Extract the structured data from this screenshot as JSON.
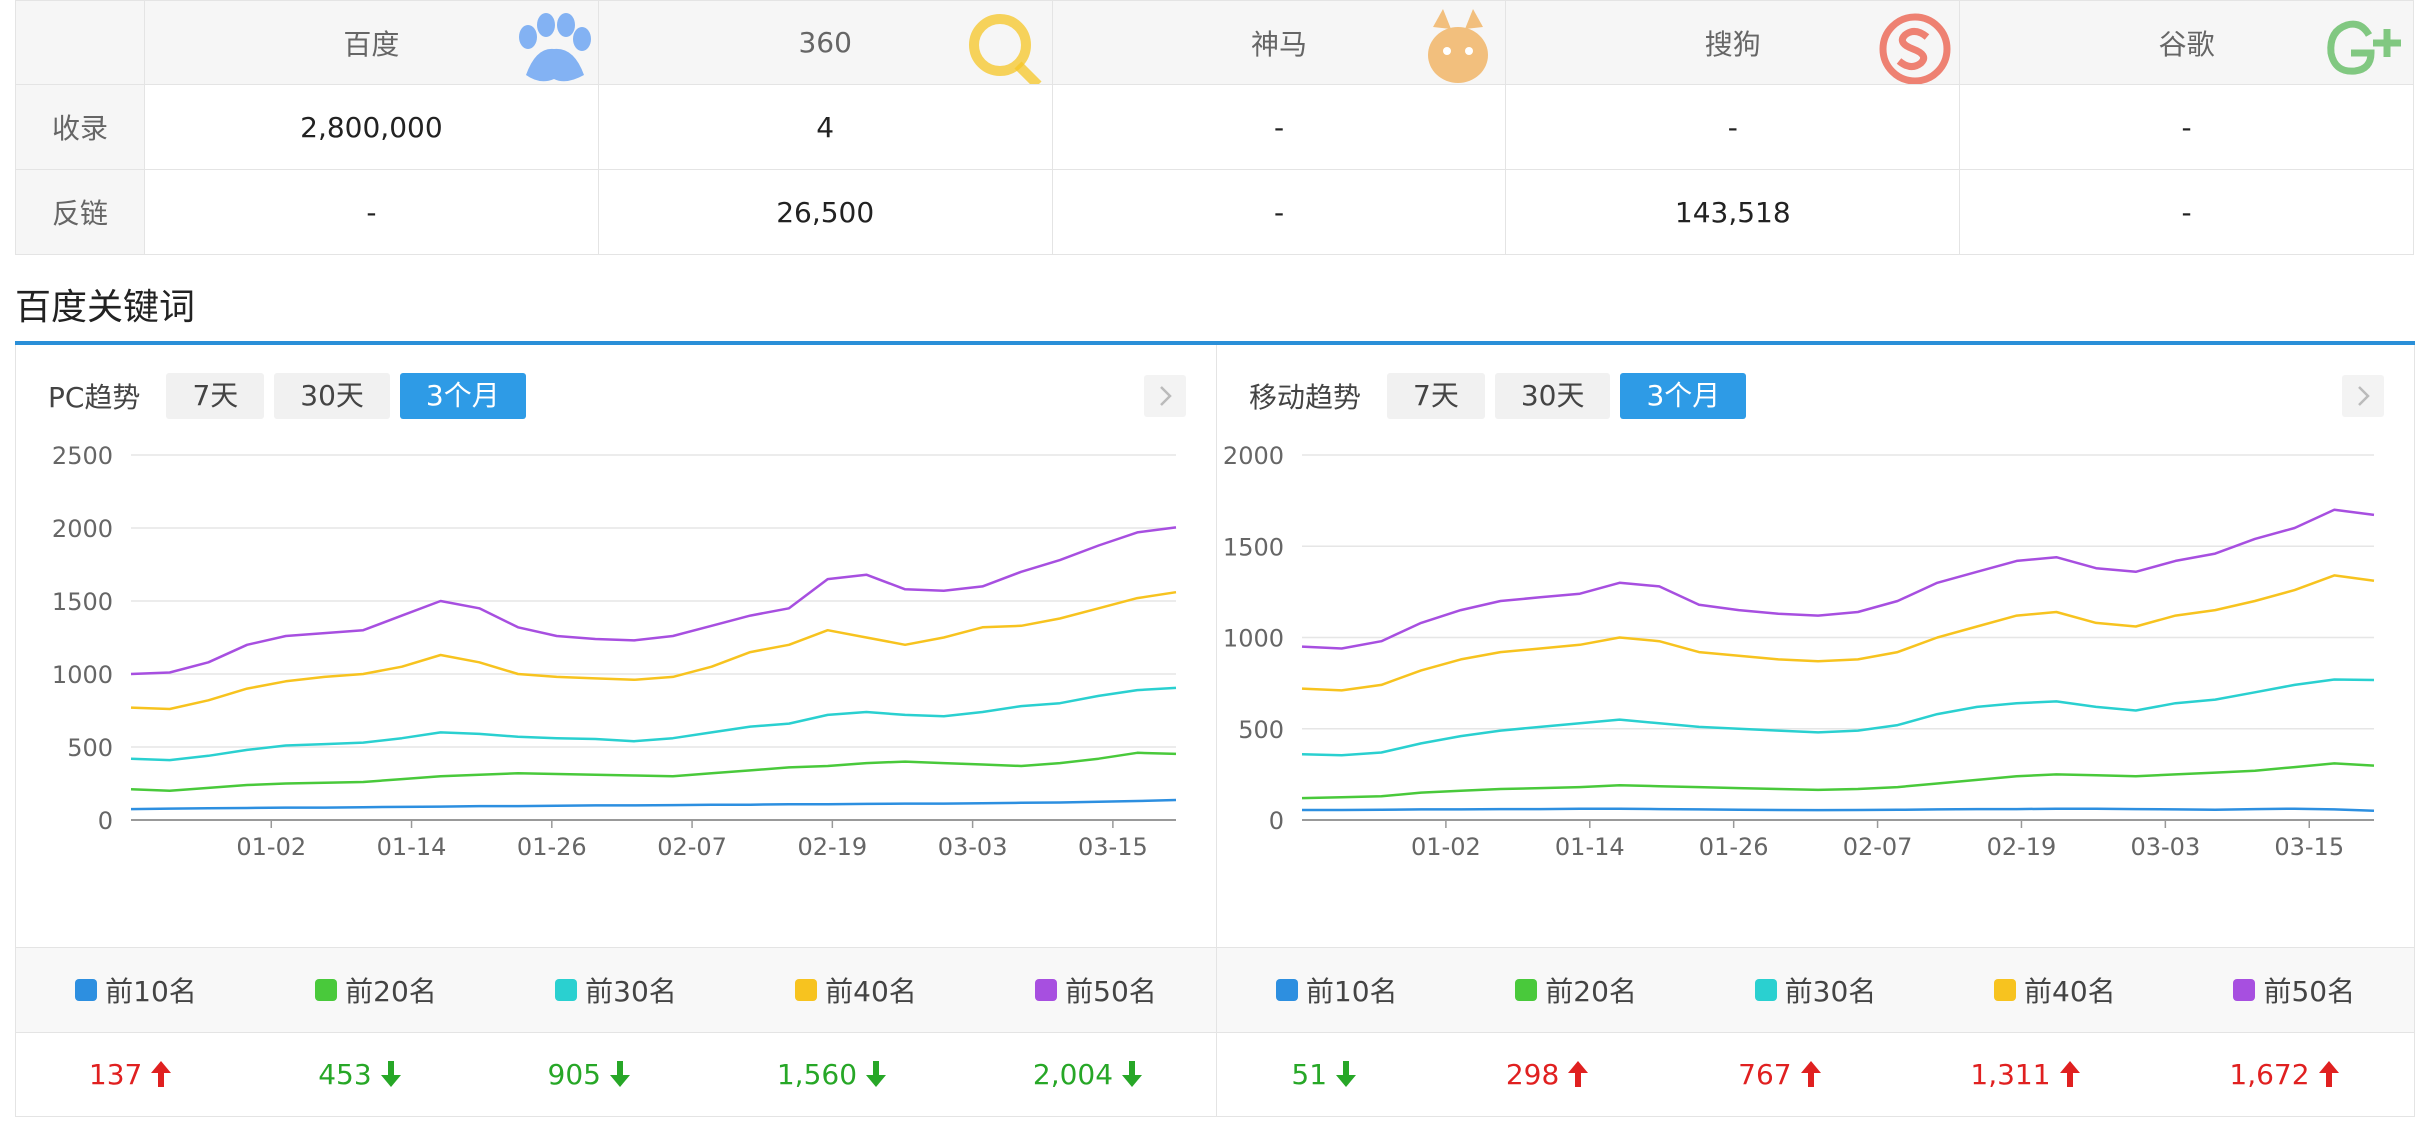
{
  "engine_table": {
    "headers": [
      "",
      "百度",
      "360",
      "神马",
      "搜狗",
      "谷歌"
    ],
    "rows": [
      {
        "label": "收录",
        "cells": [
          "2,800,000",
          "4",
          "-",
          "-",
          "-"
        ]
      },
      {
        "label": "反链",
        "cells": [
          "-",
          "26,500",
          "-",
          "143,518",
          "-"
        ]
      }
    ],
    "logo_colors": {
      "baidu": "#4a8ff0",
      "360": "#f5c518",
      "shenma": "#f3a63a",
      "sogou": "#e8412c",
      "google": "#3fae49"
    }
  },
  "section_title": "百度关键词",
  "accent_color": "#2a8fd8",
  "pc": {
    "label": "PC趋势",
    "buttons": [
      "7天",
      "30天",
      "3个月"
    ],
    "active": "3个月",
    "legend": [
      "前10名",
      "前20名",
      "前30名",
      "前40名",
      "前50名"
    ],
    "values": [
      {
        "text": "137",
        "dir": "up"
      },
      {
        "text": "453",
        "dir": "down"
      },
      {
        "text": "905",
        "dir": "down"
      },
      {
        "text": "1,560",
        "dir": "down"
      },
      {
        "text": "2,004",
        "dir": "down"
      }
    ]
  },
  "mobile": {
    "label": "移动趋势",
    "buttons": [
      "7天",
      "30天",
      "3个月"
    ],
    "active": "3个月",
    "legend": [
      "前10名",
      "前20名",
      "前30名",
      "前40名",
      "前50名"
    ],
    "values": [
      {
        "text": "51",
        "dir": "down"
      },
      {
        "text": "298",
        "dir": "up"
      },
      {
        "text": "767",
        "dir": "up"
      },
      {
        "text": "1,311",
        "dir": "up"
      },
      {
        "text": "1,672",
        "dir": "up"
      }
    ]
  },
  "series_colors": [
    "#2d8fe0",
    "#49c93b",
    "#2ad0d0",
    "#f7c31f",
    "#a74fe0"
  ],
  "chart_data": [
    {
      "type": "line",
      "ylim": [
        0,
        2500
      ],
      "yticks": [
        0,
        500,
        1000,
        1500,
        2000,
        2500
      ],
      "xticks": [
        "01-02",
        "01-14",
        "01-26",
        "02-07",
        "02-19",
        "03-03",
        "03-15"
      ],
      "series": [
        {
          "name": "前10名",
          "values": [
            75,
            78,
            80,
            82,
            85,
            85,
            88,
            90,
            92,
            95,
            95,
            98,
            100,
            100,
            102,
            105,
            105,
            108,
            108,
            110,
            112,
            112,
            115,
            118,
            120,
            125,
            130,
            137
          ]
        },
        {
          "name": "前20名",
          "values": [
            210,
            200,
            220,
            240,
            250,
            255,
            260,
            280,
            300,
            310,
            320,
            315,
            310,
            305,
            300,
            320,
            340,
            360,
            370,
            390,
            400,
            390,
            380,
            370,
            390,
            420,
            460,
            453
          ]
        },
        {
          "name": "前30名",
          "values": [
            420,
            410,
            440,
            480,
            510,
            520,
            530,
            560,
            600,
            590,
            570,
            560,
            555,
            540,
            560,
            600,
            640,
            660,
            720,
            740,
            720,
            710,
            740,
            780,
            800,
            850,
            890,
            905
          ]
        },
        {
          "name": "前40名",
          "values": [
            770,
            760,
            820,
            900,
            950,
            980,
            1000,
            1050,
            1130,
            1080,
            1000,
            980,
            970,
            960,
            980,
            1050,
            1150,
            1200,
            1300,
            1250,
            1200,
            1250,
            1320,
            1330,
            1380,
            1450,
            1520,
            1560
          ]
        },
        {
          "name": "前50名",
          "values": [
            1000,
            1010,
            1080,
            1200,
            1260,
            1280,
            1300,
            1400,
            1500,
            1450,
            1320,
            1260,
            1240,
            1230,
            1260,
            1330,
            1400,
            1450,
            1650,
            1680,
            1580,
            1570,
            1600,
            1700,
            1780,
            1880,
            1970,
            2004
          ]
        }
      ]
    },
    {
      "type": "line",
      "ylim": [
        0,
        2000
      ],
      "yticks": [
        0,
        500,
        1000,
        1500,
        2000
      ],
      "xticks": [
        "01-02",
        "01-14",
        "01-26",
        "02-07",
        "02-19",
        "03-03",
        "03-15"
      ],
      "series": [
        {
          "name": "前10名",
          "values": [
            55,
            55,
            56,
            58,
            58,
            60,
            60,
            62,
            62,
            60,
            58,
            56,
            55,
            54,
            55,
            56,
            58,
            60,
            60,
            62,
            62,
            60,
            58,
            56,
            60,
            62,
            58,
            51
          ]
        },
        {
          "name": "前20名",
          "values": [
            120,
            125,
            130,
            150,
            160,
            170,
            175,
            180,
            190,
            185,
            180,
            175,
            170,
            165,
            170,
            180,
            200,
            220,
            240,
            250,
            245,
            240,
            250,
            260,
            270,
            290,
            310,
            298
          ]
        },
        {
          "name": "前30名",
          "values": [
            360,
            355,
            370,
            420,
            460,
            490,
            510,
            530,
            550,
            530,
            510,
            500,
            490,
            480,
            490,
            520,
            580,
            620,
            640,
            650,
            620,
            600,
            640,
            660,
            700,
            740,
            770,
            767
          ]
        },
        {
          "name": "前40名",
          "values": [
            720,
            710,
            740,
            820,
            880,
            920,
            940,
            960,
            1000,
            980,
            920,
            900,
            880,
            870,
            880,
            920,
            1000,
            1060,
            1120,
            1140,
            1080,
            1060,
            1120,
            1150,
            1200,
            1260,
            1340,
            1311
          ]
        },
        {
          "name": "前50名",
          "values": [
            950,
            940,
            980,
            1080,
            1150,
            1200,
            1220,
            1240,
            1300,
            1280,
            1180,
            1150,
            1130,
            1120,
            1140,
            1200,
            1300,
            1360,
            1420,
            1440,
            1380,
            1360,
            1420,
            1460,
            1540,
            1600,
            1700,
            1672
          ]
        }
      ]
    }
  ]
}
